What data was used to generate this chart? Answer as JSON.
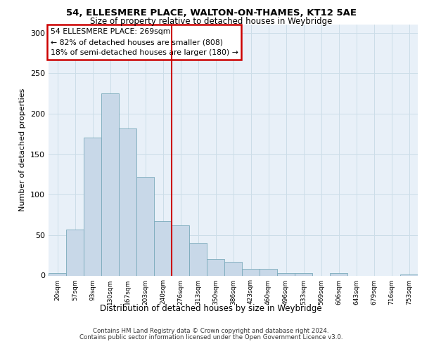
{
  "title1": "54, ELLESMERE PLACE, WALTON-ON-THAMES, KT12 5AE",
  "title2": "Size of property relative to detached houses in Weybridge",
  "xlabel": "Distribution of detached houses by size in Weybridge",
  "ylabel": "Number of detached properties",
  "categories": [
    "20sqm",
    "57sqm",
    "93sqm",
    "130sqm",
    "167sqm",
    "203sqm",
    "240sqm",
    "276sqm",
    "313sqm",
    "350sqm",
    "386sqm",
    "423sqm",
    "460sqm",
    "496sqm",
    "533sqm",
    "569sqm",
    "606sqm",
    "643sqm",
    "679sqm",
    "716sqm",
    "753sqm"
  ],
  "bar_values": [
    3,
    57,
    170,
    225,
    182,
    122,
    67,
    62,
    40,
    20,
    17,
    8,
    8,
    3,
    3,
    0,
    3,
    0,
    0,
    0,
    1
  ],
  "bar_color": "#c8d8e8",
  "bar_edge_color": "#7aaabb",
  "vline_color": "#cc0000",
  "annotation_text": "54 ELLESMERE PLACE: 269sqm\n← 82% of detached houses are smaller (808)\n18% of semi-detached houses are larger (180) →",
  "annotation_box_color": "#ffffff",
  "annotation_box_edge": "#cc0000",
  "ylim": [
    0,
    310
  ],
  "yticks": [
    0,
    50,
    100,
    150,
    200,
    250,
    300
  ],
  "grid_color": "#ccdde8",
  "background_color": "#e8f0f8",
  "footer1": "Contains HM Land Registry data © Crown copyright and database right 2024.",
  "footer2": "Contains public sector information licensed under the Open Government Licence v3.0."
}
